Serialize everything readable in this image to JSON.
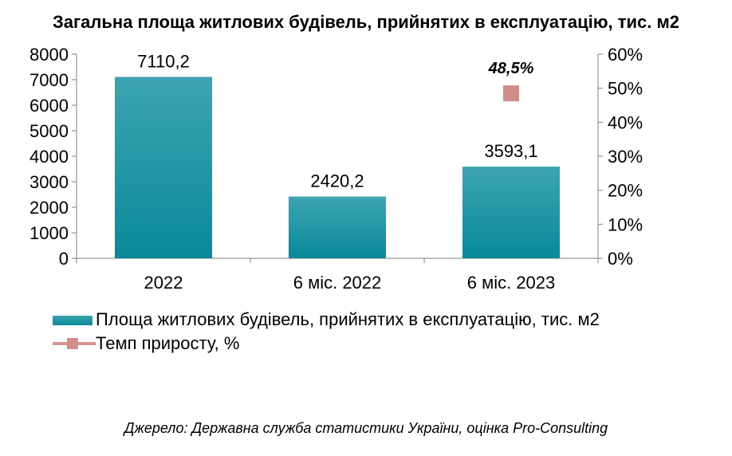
{
  "chart_data": {
    "type": "bar",
    "title": "Загальна площа житлових будівель, прийнятих в експлуатацію, тис. м2",
    "categories": [
      "2022",
      "6 міс. 2022",
      "6 міс. 2023"
    ],
    "series": [
      {
        "name": "Площа житлових будівель, прийнятих в експлуатацію, тис. м2",
        "type": "bar",
        "axis": "left",
        "values": [
          7110.2,
          2420.2,
          3593.1
        ],
        "labels": [
          "7110,2",
          "2420,2",
          "3593,1"
        ],
        "color": "#0e8f99"
      },
      {
        "name": "Темп приросту, %",
        "type": "line-marker",
        "axis": "right",
        "values": [
          null,
          null,
          48.5
        ],
        "labels": [
          "",
          "",
          "48,5%"
        ],
        "color": "#d08e8b"
      }
    ],
    "ylim_left": [
      0,
      8000
    ],
    "yticks_left": [
      "0",
      "1000",
      "2000",
      "3000",
      "4000",
      "5000",
      "6000",
      "7000",
      "8000"
    ],
    "ylim_right": [
      0,
      60
    ],
    "yticks_right": [
      "0%",
      "10%",
      "20%",
      "30%",
      "40%",
      "50%",
      "60%"
    ],
    "grid": false,
    "legend_position": "bottom"
  },
  "source": "Джерело: Державна служба статистики України, оцінка Pro-Consulting"
}
